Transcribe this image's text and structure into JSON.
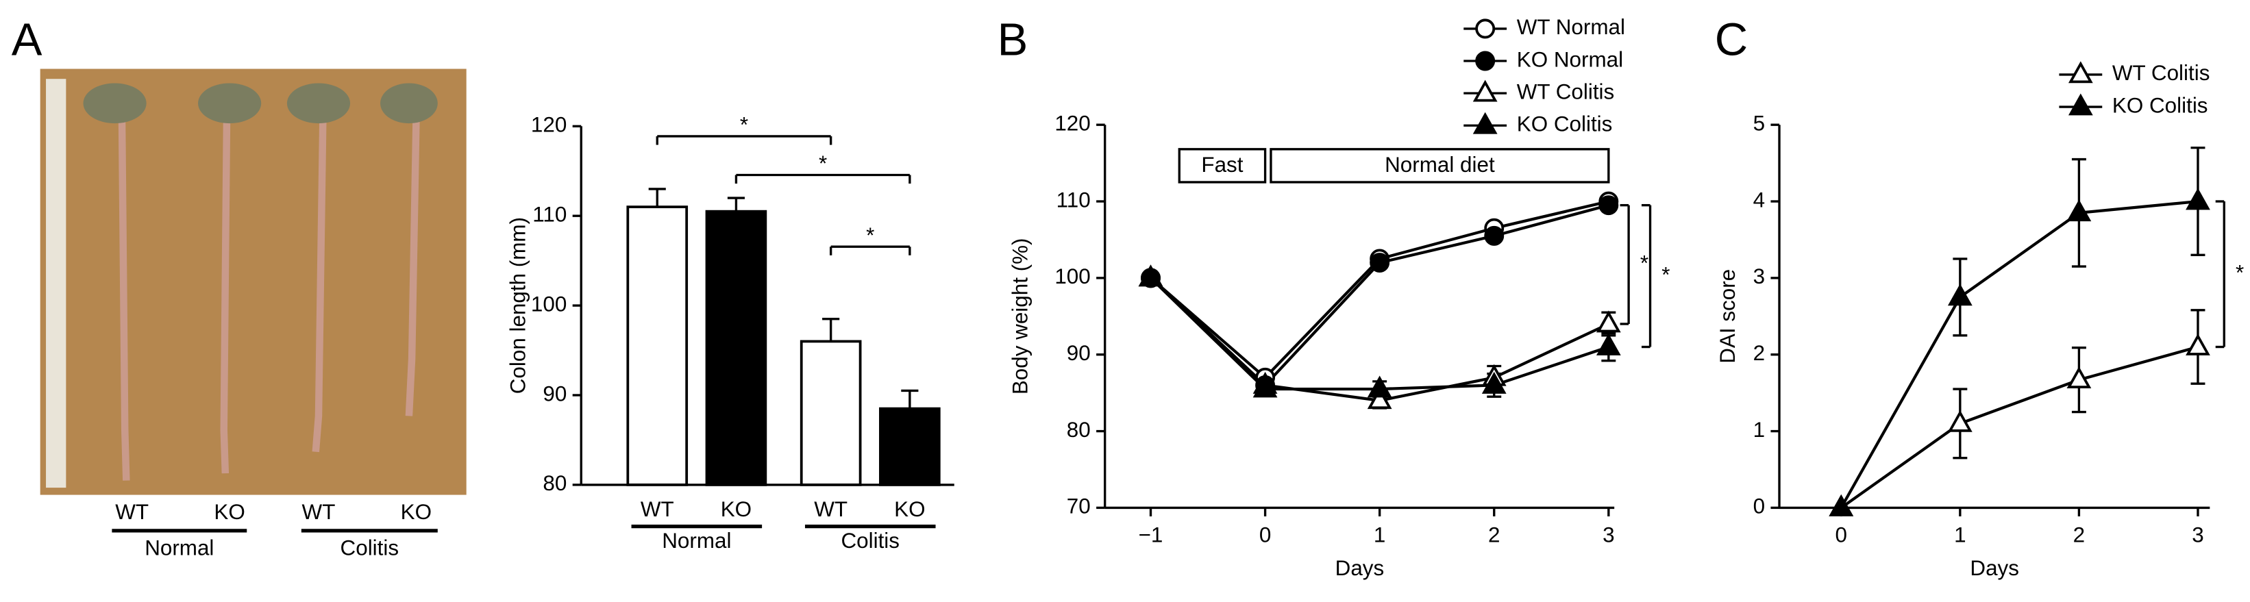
{
  "figure": {
    "panel_labels": [
      "A",
      "B",
      "C"
    ],
    "photo": {
      "labels": [
        "WT",
        "KO",
        "WT",
        "KO"
      ],
      "groups": [
        "Normal",
        "Colitis"
      ]
    }
  },
  "chart_data": [
    {
      "type": "bar",
      "ylabel": "Colon length (mm)",
      "categories": [
        "WT",
        "KO",
        "WT",
        "KO"
      ],
      "groups": [
        "Normal",
        "Colitis"
      ],
      "values": [
        111,
        110.5,
        96,
        88.5
      ],
      "errors": [
        2,
        1.5,
        2.5,
        2
      ],
      "colors": [
        "#ffffff",
        "#000000",
        "#ffffff",
        "#000000"
      ],
      "ylim": [
        80,
        120
      ],
      "yticks": [
        80,
        90,
        100,
        110,
        120
      ],
      "brackets": [
        {
          "text": "*",
          "from": 0,
          "to": 2
        },
        {
          "text": "*",
          "from": 1,
          "to": 3
        },
        {
          "text": "*",
          "from": 2,
          "to": 3
        }
      ]
    },
    {
      "type": "line",
      "xlabel": "Days",
      "ylabel": "Body weight (%)",
      "x": [
        -1,
        0,
        1,
        2,
        3
      ],
      "xlim": [
        -1.4,
        3.05
      ],
      "xticks": [
        {
          "value": -1,
          "label": "−1"
        },
        0,
        1,
        2,
        3
      ],
      "ylim": [
        70,
        120
      ],
      "yticks": [
        70,
        80,
        90,
        100,
        110,
        120
      ],
      "phases": [
        {
          "label": "Fast",
          "from": -0.75,
          "to": 0
        },
        {
          "label": "Normal diet",
          "from": 0.05,
          "to": 3
        }
      ],
      "series": [
        {
          "name": "WT Normal",
          "marker": "circle",
          "color": "#000000",
          "fill": "#ffffff",
          "values": [
            100,
            87,
            102.5,
            106.5,
            110
          ],
          "errors": [
            null,
            null,
            null,
            null,
            null
          ]
        },
        {
          "name": "KO Normal",
          "marker": "circle",
          "color": "#000000",
          "fill": "#000000",
          "values": [
            100,
            86,
            102,
            105.5,
            109.5
          ],
          "errors": [
            null,
            null,
            null,
            null,
            null
          ]
        },
        {
          "name": "WT Colitis",
          "marker": "triangle",
          "color": "#000000",
          "fill": "#ffffff",
          "values": [
            100,
            86,
            84,
            87,
            94
          ],
          "errors": [
            null,
            null,
            1,
            1.5,
            1.5
          ]
        },
        {
          "name": "KO Colitis",
          "marker": "triangle",
          "color": "#000000",
          "fill": "#000000",
          "values": [
            100,
            85.5,
            85.5,
            86,
            91
          ],
          "errors": [
            null,
            null,
            1,
            1.5,
            1.8
          ]
        }
      ],
      "brackets": [
        {
          "text": "*",
          "from": 1,
          "to": 2
        },
        {
          "text": "*",
          "from": 1,
          "to": 3
        }
      ]
    },
    {
      "type": "line",
      "xlabel": "Days",
      "ylabel": "DAI score",
      "x": [
        0,
        1,
        2,
        3
      ],
      "xlim": [
        -0.52,
        3.1
      ],
      "xticks": [
        0,
        1,
        2,
        3
      ],
      "ylim": [
        0,
        5
      ],
      "yticks": [
        0,
        1,
        2,
        3,
        4,
        5
      ],
      "series": [
        {
          "name": "WT Colitis",
          "marker": "triangle",
          "color": "#000000",
          "fill": "#ffffff",
          "values": [
            0,
            1.1,
            1.67,
            2.1
          ],
          "errors": [
            null,
            0.45,
            0.42,
            0.48
          ]
        },
        {
          "name": "KO Colitis",
          "marker": "triangle",
          "color": "#000000",
          "fill": "#000000",
          "values": [
            0,
            2.75,
            3.85,
            4
          ],
          "errors": [
            null,
            0.5,
            0.7,
            0.7
          ]
        }
      ],
      "brackets": [
        {
          "text": "*",
          "from": 0,
          "to": 1
        }
      ]
    }
  ]
}
